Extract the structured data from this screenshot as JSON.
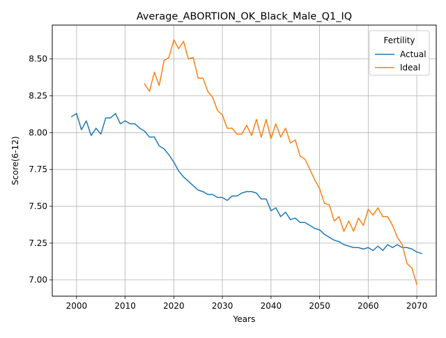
{
  "chart_data": {
    "type": "line",
    "title": "Average_ABORTION_OK_Black_Male_Q1_IQ",
    "xlabel": "Years",
    "ylabel": "Score(6-12)",
    "xlim": [
      1995,
      2074
    ],
    "ylim": [
      6.89,
      6.73
    ],
    "xticks": [
      2000,
      2010,
      2020,
      2030,
      2040,
      2050,
      2060,
      2070
    ],
    "xtick_labels": [
      "2000",
      "2010",
      "2020",
      "2030",
      "2040",
      "2050",
      "2060",
      "2070"
    ],
    "yticks": [
      7.0,
      7.25,
      7.5,
      7.75,
      8.0,
      8.25,
      8.5
    ],
    "ytick_labels": [
      "7.00",
      "7.25",
      "7.50",
      "7.75",
      "8.00",
      "8.25",
      "8.50"
    ],
    "grid": true,
    "legend": {
      "title": "Fertility",
      "placement": "top-right"
    },
    "series": [
      {
        "name": "Actual",
        "color": "#1f77b4",
        "x_start": 1999,
        "values": [
          8.11,
          8.13,
          8.02,
          8.08,
          7.98,
          8.03,
          7.99,
          8.1,
          8.1,
          8.13,
          8.06,
          8.08,
          8.06,
          8.06,
          8.03,
          8.01,
          7.97,
          7.97,
          7.91,
          7.89,
          7.85,
          7.8,
          7.74,
          7.7,
          7.67,
          7.64,
          7.61,
          7.6,
          7.58,
          7.58,
          7.56,
          7.56,
          7.54,
          7.57,
          7.57,
          7.59,
          7.6,
          7.6,
          7.59,
          7.55,
          7.55,
          7.47,
          7.49,
          7.43,
          7.46,
          7.41,
          7.42,
          7.39,
          7.39,
          7.37,
          7.35,
          7.34,
          7.31,
          7.29,
          7.27,
          7.26,
          7.24,
          7.23,
          7.22,
          7.22,
          7.21,
          7.22,
          7.2,
          7.23,
          7.2,
          7.24,
          7.22,
          7.24,
          7.22,
          7.22,
          7.21,
          7.19,
          7.18
        ]
      },
      {
        "name": "Ideal",
        "color": "#ff7f0e",
        "x_start": 2014,
        "values": [
          8.33,
          8.28,
          8.41,
          8.32,
          8.49,
          8.51,
          8.63,
          8.57,
          8.62,
          8.5,
          8.51,
          8.37,
          8.37,
          8.28,
          8.24,
          8.15,
          8.12,
          8.03,
          8.03,
          7.99,
          7.99,
          8.05,
          7.98,
          8.09,
          7.97,
          8.09,
          7.96,
          8.06,
          7.97,
          8.03,
          7.93,
          7.95,
          7.84,
          7.82,
          7.75,
          7.68,
          7.62,
          7.52,
          7.51,
          7.4,
          7.43,
          7.33,
          7.4,
          7.33,
          7.42,
          7.37,
          7.48,
          7.44,
          7.49,
          7.43,
          7.43,
          7.37,
          7.29,
          7.24,
          7.11,
          7.08,
          6.97
        ]
      }
    ]
  }
}
